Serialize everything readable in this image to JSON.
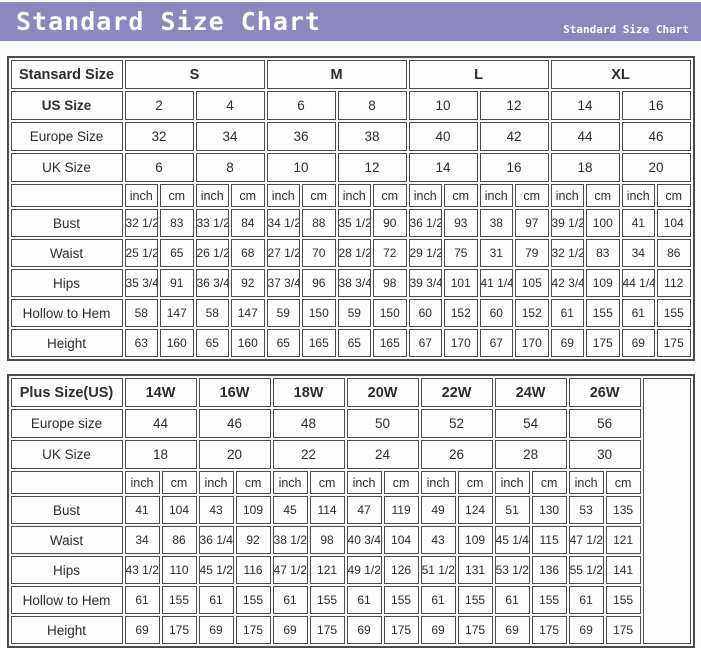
{
  "banner": {
    "title": "Standard Size Chart",
    "subtitle": "Standard Size Chart"
  },
  "colors": {
    "banner_bg": "#8d87c0",
    "banner_text": "#ffffff",
    "table_border": "#4b4b4b",
    "cell_bg": "#fdfdfd",
    "cell_text": "#2d2d2d"
  },
  "chart_data": [
    {
      "type": "table",
      "corner_label": "Stansard Size",
      "size_groups": [
        {
          "label": "S",
          "span": 4
        },
        {
          "label": "M",
          "span": 4
        },
        {
          "label": "L",
          "span": 4
        },
        {
          "label": "XL",
          "span": 4
        }
      ],
      "trailing_empty_rowspan": 0,
      "size_rows": [
        {
          "label": "US Size",
          "bold": true,
          "values": [
            "2",
            "4",
            "6",
            "8",
            "10",
            "12",
            "14",
            "16"
          ]
        },
        {
          "label": "Europe Size",
          "bold": false,
          "values": [
            "32",
            "34",
            "36",
            "38",
            "40",
            "42",
            "44",
            "46"
          ]
        },
        {
          "label": "UK Size",
          "bold": false,
          "values": [
            "6",
            "8",
            "10",
            "12",
            "14",
            "16",
            "18",
            "20"
          ]
        }
      ],
      "unit_row": [
        "inch",
        "cm",
        "inch",
        "cm",
        "inch",
        "cm",
        "inch",
        "cm",
        "inch",
        "cm",
        "inch",
        "cm",
        "inch",
        "cm",
        "inch",
        "cm"
      ],
      "measure_rows": [
        {
          "label": "Bust",
          "values": [
            "32 1/2",
            "83",
            "33 1/2",
            "84",
            "34 1/2",
            "88",
            "35 1/2",
            "90",
            "36 1/2",
            "93",
            "38",
            "97",
            "39 1/2",
            "100",
            "41",
            "104"
          ]
        },
        {
          "label": "Waist",
          "values": [
            "25 1/2",
            "65",
            "26 1/2",
            "68",
            "27 1/2",
            "70",
            "28 1/2",
            "72",
            "29 1/2",
            "75",
            "31",
            "79",
            "32 1/2",
            "83",
            "34",
            "86"
          ]
        },
        {
          "label": "Hips",
          "values": [
            "35 3/4",
            "91",
            "36 3/4",
            "92",
            "37 3/4",
            "96",
            "38 3/4",
            "98",
            "39 3/4",
            "101",
            "41 1/4",
            "105",
            "42 3/4",
            "109",
            "44 1/4",
            "112"
          ]
        },
        {
          "label": "Hollow to Hem",
          "values": [
            "58",
            "147",
            "58",
            "147",
            "59",
            "150",
            "59",
            "150",
            "60",
            "152",
            "60",
            "152",
            "61",
            "155",
            "61",
            "155"
          ]
        },
        {
          "label": "Height",
          "values": [
            "63",
            "160",
            "65",
            "160",
            "65",
            "165",
            "65",
            "165",
            "67",
            "170",
            "67",
            "170",
            "69",
            "175",
            "69",
            "175"
          ]
        }
      ]
    },
    {
      "type": "table",
      "corner_label": "Plus Size(US)",
      "size_groups": [
        {
          "label": "14W",
          "span": 2
        },
        {
          "label": "16W",
          "span": 2
        },
        {
          "label": "18W",
          "span": 2
        },
        {
          "label": "20W",
          "span": 2
        },
        {
          "label": "22W",
          "span": 2
        },
        {
          "label": "24W",
          "span": 2
        },
        {
          "label": "26W",
          "span": 2
        }
      ],
      "trailing_empty_rowspan": 9,
      "size_rows": [
        {
          "label": "Europe size",
          "bold": false,
          "values": [
            "44",
            "46",
            "48",
            "50",
            "52",
            "54",
            "56"
          ]
        },
        {
          "label": "UK Size",
          "bold": false,
          "values": [
            "18",
            "20",
            "22",
            "24",
            "26",
            "28",
            "30"
          ]
        }
      ],
      "unit_row": [
        "inch",
        "cm",
        "inch",
        "cm",
        "inch",
        "cm",
        "inch",
        "cm",
        "inch",
        "cm",
        "inch",
        "cm",
        "inch",
        "cm"
      ],
      "measure_rows": [
        {
          "label": "Bust",
          "values": [
            "41",
            "104",
            "43",
            "109",
            "45",
            "114",
            "47",
            "119",
            "49",
            "124",
            "51",
            "130",
            "53",
            "135"
          ]
        },
        {
          "label": "Waist",
          "values": [
            "34",
            "86",
            "36 1/4",
            "92",
            "38 1/2",
            "98",
            "40 3/4",
            "104",
            "43",
            "109",
            "45 1/4",
            "115",
            "47 1/2",
            "121"
          ]
        },
        {
          "label": "Hips",
          "values": [
            "43 1/2",
            "110",
            "45 1/2",
            "116",
            "47 1/2",
            "121",
            "49 1/2",
            "126",
            "51 1/2",
            "131",
            "53 1/2",
            "136",
            "55 1/2",
            "141"
          ]
        },
        {
          "label": "Hollow to Hem",
          "values": [
            "61",
            "155",
            "61",
            "155",
            "61",
            "155",
            "61",
            "155",
            "61",
            "155",
            "61",
            "155",
            "61",
            "155"
          ]
        },
        {
          "label": "Height",
          "values": [
            "69",
            "175",
            "69",
            "175",
            "69",
            "175",
            "69",
            "175",
            "69",
            "175",
            "69",
            "175",
            "69",
            "175"
          ]
        }
      ]
    }
  ]
}
